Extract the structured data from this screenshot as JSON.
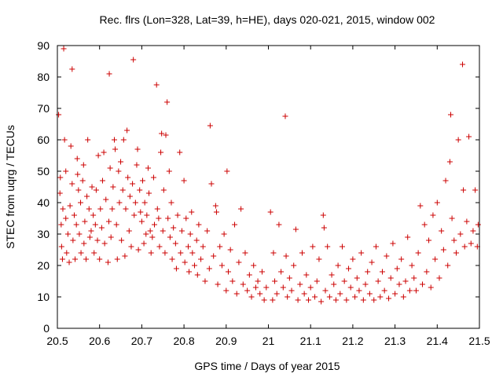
{
  "chart_data": {
    "type": "scatter",
    "title": "Rec. flrs (Lon=328, Lat=39, h=HE), days 020-021, 2015, window 002",
    "xlabel": "GPS time / Days of year 2015",
    "ylabel": "STEC from uqrg / TECUs",
    "xlim": [
      20.5,
      21.5
    ],
    "ylim": [
      0,
      90
    ],
    "x_ticks": [
      20.5,
      20.6,
      20.7,
      20.8,
      20.9,
      21,
      21.1,
      21.2,
      21.3,
      21.4,
      21.5
    ],
    "x_tick_labels": [
      "20.5",
      "20.6",
      "20.7",
      "20.8",
      "20.9",
      "21",
      "21.1",
      "21.2",
      "21.3",
      "21.4",
      "21.5"
    ],
    "y_ticks": [
      0,
      10,
      20,
      30,
      40,
      50,
      60,
      70,
      80,
      90
    ],
    "y_tick_labels": [
      "0",
      "10",
      "20",
      "30",
      "40",
      "50",
      "60",
      "70",
      "80",
      "90"
    ],
    "grid": false,
    "legend": "none",
    "marker": "+",
    "color": "#cc0000",
    "series": [
      {
        "points": [
          [
            20.503,
            68
          ],
          [
            20.506,
            43
          ],
          [
            20.507,
            48
          ],
          [
            20.509,
            33
          ],
          [
            20.51,
            26
          ],
          [
            20.512,
            22
          ],
          [
            20.513,
            38
          ],
          [
            20.515,
            89
          ],
          [
            20.517,
            60
          ],
          [
            20.52,
            50
          ],
          [
            20.52,
            35
          ],
          [
            20.522,
            24
          ],
          [
            20.525,
            30
          ],
          [
            20.528,
            21
          ],
          [
            20.53,
            39
          ],
          [
            20.532,
            58
          ],
          [
            20.535,
            82.5
          ],
          [
            20.535,
            46
          ],
          [
            20.537,
            28
          ],
          [
            20.54,
            36
          ],
          [
            20.542,
            22
          ],
          [
            20.545,
            33
          ],
          [
            20.547,
            54
          ],
          [
            20.548,
            49
          ],
          [
            20.55,
            44
          ],
          [
            20.552,
            30
          ],
          [
            20.555,
            40
          ],
          [
            20.556,
            24
          ],
          [
            20.56,
            47
          ],
          [
            20.562,
            52
          ],
          [
            20.563,
            27
          ],
          [
            20.565,
            34
          ],
          [
            20.568,
            22
          ],
          [
            20.57,
            42
          ],
          [
            20.572,
            60
          ],
          [
            20.575,
            38
          ],
          [
            20.577,
            29
          ],
          [
            20.58,
            31
          ],
          [
            20.582,
            45
          ],
          [
            20.585,
            36
          ],
          [
            20.587,
            24
          ],
          [
            20.59,
            33
          ],
          [
            20.592,
            44
          ],
          [
            20.595,
            28
          ],
          [
            20.597,
            55
          ],
          [
            20.6,
            22
          ],
          [
            20.602,
            38
          ],
          [
            20.605,
            32
          ],
          [
            20.607,
            47
          ],
          [
            20.61,
            56
          ],
          [
            20.612,
            27
          ],
          [
            20.615,
            41
          ],
          [
            20.62,
            21
          ],
          [
            20.622,
            34
          ],
          [
            20.623,
            81
          ],
          [
            20.625,
            51
          ],
          [
            20.627,
            29
          ],
          [
            20.63,
            38
          ],
          [
            20.632,
            45
          ],
          [
            20.635,
            60
          ],
          [
            20.637,
            57
          ],
          [
            20.64,
            33
          ],
          [
            20.642,
            22
          ],
          [
            20.645,
            50
          ],
          [
            20.647,
            40
          ],
          [
            20.65,
            53
          ],
          [
            20.652,
            28
          ],
          [
            20.655,
            44
          ],
          [
            20.657,
            60
          ],
          [
            20.66,
            23
          ],
          [
            20.662,
            38
          ],
          [
            20.665,
            63
          ],
          [
            20.667,
            48
          ],
          [
            20.67,
            31
          ],
          [
            20.672,
            42
          ],
          [
            20.675,
            26
          ],
          [
            20.678,
            46
          ],
          [
            20.68,
            85.5
          ],
          [
            20.682,
            36
          ],
          [
            20.685,
            40
          ],
          [
            20.688,
            52
          ],
          [
            20.69,
            57
          ],
          [
            20.692,
            25
          ],
          [
            20.695,
            44
          ],
          [
            20.697,
            37
          ],
          [
            20.7,
            34
          ],
          [
            20.702,
            47
          ],
          [
            20.705,
            27
          ],
          [
            20.707,
            40
          ],
          [
            20.71,
            30
          ],
          [
            20.712,
            36
          ],
          [
            20.715,
            51
          ],
          [
            20.717,
            43
          ],
          [
            20.72,
            31
          ],
          [
            20.722,
            24
          ],
          [
            20.725,
            29
          ],
          [
            20.728,
            48
          ],
          [
            20.73,
            33
          ],
          [
            20.735,
            77.5
          ],
          [
            20.737,
            38
          ],
          [
            20.74,
            35
          ],
          [
            20.742,
            26
          ],
          [
            20.745,
            56
          ],
          [
            20.747,
            62
          ],
          [
            20.75,
            31
          ],
          [
            20.752,
            44
          ],
          [
            20.755,
            24
          ],
          [
            20.757,
            61.5
          ],
          [
            20.76,
            72
          ],
          [
            20.762,
            35
          ],
          [
            20.765,
            50
          ],
          [
            20.767,
            29
          ],
          [
            20.77,
            40
          ],
          [
            20.772,
            22
          ],
          [
            20.775,
            32
          ],
          [
            20.78,
            27
          ],
          [
            20.782,
            19
          ],
          [
            20.785,
            36
          ],
          [
            20.79,
            56
          ],
          [
            20.792,
            24
          ],
          [
            20.795,
            31
          ],
          [
            20.8,
            47
          ],
          [
            20.802,
            21
          ],
          [
            20.805,
            35
          ],
          [
            20.81,
            26
          ],
          [
            20.812,
            18
          ],
          [
            20.815,
            30
          ],
          [
            20.818,
            37
          ],
          [
            20.82,
            24
          ],
          [
            20.825,
            20
          ],
          [
            20.83,
            28
          ],
          [
            20.832,
            17
          ],
          [
            20.835,
            33
          ],
          [
            20.84,
            22
          ],
          [
            20.845,
            26
          ],
          [
            20.85,
            15
          ],
          [
            20.855,
            31
          ],
          [
            20.86,
            19
          ],
          [
            20.862,
            64.5
          ],
          [
            20.865,
            46
          ],
          [
            20.87,
            23
          ],
          [
            20.875,
            39
          ],
          [
            20.877,
            37
          ],
          [
            20.88,
            14
          ],
          [
            20.885,
            26
          ],
          [
            20.89,
            20
          ],
          [
            20.895,
            30
          ],
          [
            20.9,
            12
          ],
          [
            20.902,
            50
          ],
          [
            20.905,
            18
          ],
          [
            20.91,
            25
          ],
          [
            20.915,
            15
          ],
          [
            20.92,
            33
          ],
          [
            20.925,
            11
          ],
          [
            20.93,
            21
          ],
          [
            20.935,
            38
          ],
          [
            20.94,
            14
          ],
          [
            20.945,
            24
          ],
          [
            20.95,
            12
          ],
          [
            20.955,
            17
          ],
          [
            20.96,
            10
          ],
          [
            20.965,
            20
          ],
          [
            20.97,
            13
          ],
          [
            20.975,
            15
          ],
          [
            20.98,
            11
          ],
          [
            20.985,
            18
          ],
          [
            20.99,
            9
          ],
          [
            20.995,
            13
          ],
          [
            21.005,
            37
          ],
          [
            21.01,
            9
          ],
          [
            21.012,
            24
          ],
          [
            21.015,
            15
          ],
          [
            21.02,
            11
          ],
          [
            21.025,
            33
          ],
          [
            21.03,
            18
          ],
          [
            21.035,
            13
          ],
          [
            21.04,
            67.5
          ],
          [
            21.042,
            23
          ],
          [
            21.045,
            10
          ],
          [
            21.05,
            16
          ],
          [
            21.055,
            12
          ],
          [
            21.06,
            20
          ],
          [
            21.065,
            31.5
          ],
          [
            21.07,
            9
          ],
          [
            21.075,
            14
          ],
          [
            21.08,
            24
          ],
          [
            21.085,
            11
          ],
          [
            21.09,
            17
          ],
          [
            21.095,
            9
          ],
          [
            21.1,
            13
          ],
          [
            21.105,
            26
          ],
          [
            21.11,
            10
          ],
          [
            21.115,
            15
          ],
          [
            21.12,
            22
          ],
          [
            21.125,
            8.5
          ],
          [
            21.13,
            36
          ],
          [
            21.132,
            32
          ],
          [
            21.135,
            12
          ],
          [
            21.14,
            26
          ],
          [
            21.145,
            10
          ],
          [
            21.15,
            17
          ],
          [
            21.155,
            14
          ],
          [
            21.16,
            9
          ],
          [
            21.165,
            20
          ],
          [
            21.17,
            11
          ],
          [
            21.175,
            26
          ],
          [
            21.18,
            15
          ],
          [
            21.185,
            9
          ],
          [
            21.19,
            19
          ],
          [
            21.195,
            13
          ],
          [
            21.2,
            22
          ],
          [
            21.205,
            10
          ],
          [
            21.21,
            16
          ],
          [
            21.215,
            12
          ],
          [
            21.22,
            24
          ],
          [
            21.225,
            9
          ],
          [
            21.23,
            14
          ],
          [
            21.235,
            18
          ],
          [
            21.24,
            11
          ],
          [
            21.245,
            21
          ],
          [
            21.25,
            9
          ],
          [
            21.255,
            26
          ],
          [
            21.26,
            15
          ],
          [
            21.265,
            10
          ],
          [
            21.27,
            18
          ],
          [
            21.275,
            12
          ],
          [
            21.28,
            23
          ],
          [
            21.285,
            9.5
          ],
          [
            21.29,
            16
          ],
          [
            21.295,
            27
          ],
          [
            21.3,
            11
          ],
          [
            21.305,
            19
          ],
          [
            21.31,
            14
          ],
          [
            21.315,
            22
          ],
          [
            21.32,
            10
          ],
          [
            21.325,
            15
          ],
          [
            21.33,
            29
          ],
          [
            21.335,
            12
          ],
          [
            21.34,
            20
          ],
          [
            21.345,
            16
          ],
          [
            21.35,
            12
          ],
          [
            21.355,
            24
          ],
          [
            21.36,
            39
          ],
          [
            21.365,
            14
          ],
          [
            21.37,
            33
          ],
          [
            21.375,
            18
          ],
          [
            21.38,
            28
          ],
          [
            21.385,
            13
          ],
          [
            21.39,
            36
          ],
          [
            21.395,
            22
          ],
          [
            21.4,
            40
          ],
          [
            21.405,
            16
          ],
          [
            21.41,
            31
          ],
          [
            21.415,
            25
          ],
          [
            21.42,
            47
          ],
          [
            21.425,
            20
          ],
          [
            21.43,
            53
          ],
          [
            21.432,
            68
          ],
          [
            21.435,
            35
          ],
          [
            21.44,
            28
          ],
          [
            21.445,
            24
          ],
          [
            21.45,
            60
          ],
          [
            21.455,
            30
          ],
          [
            21.46,
            84
          ],
          [
            21.462,
            44
          ],
          [
            21.465,
            26
          ],
          [
            21.47,
            34
          ],
          [
            21.475,
            61
          ],
          [
            21.48,
            27
          ],
          [
            21.485,
            31
          ],
          [
            21.49,
            44
          ],
          [
            21.495,
            26
          ],
          [
            21.497,
            33
          ]
        ]
      }
    ]
  }
}
